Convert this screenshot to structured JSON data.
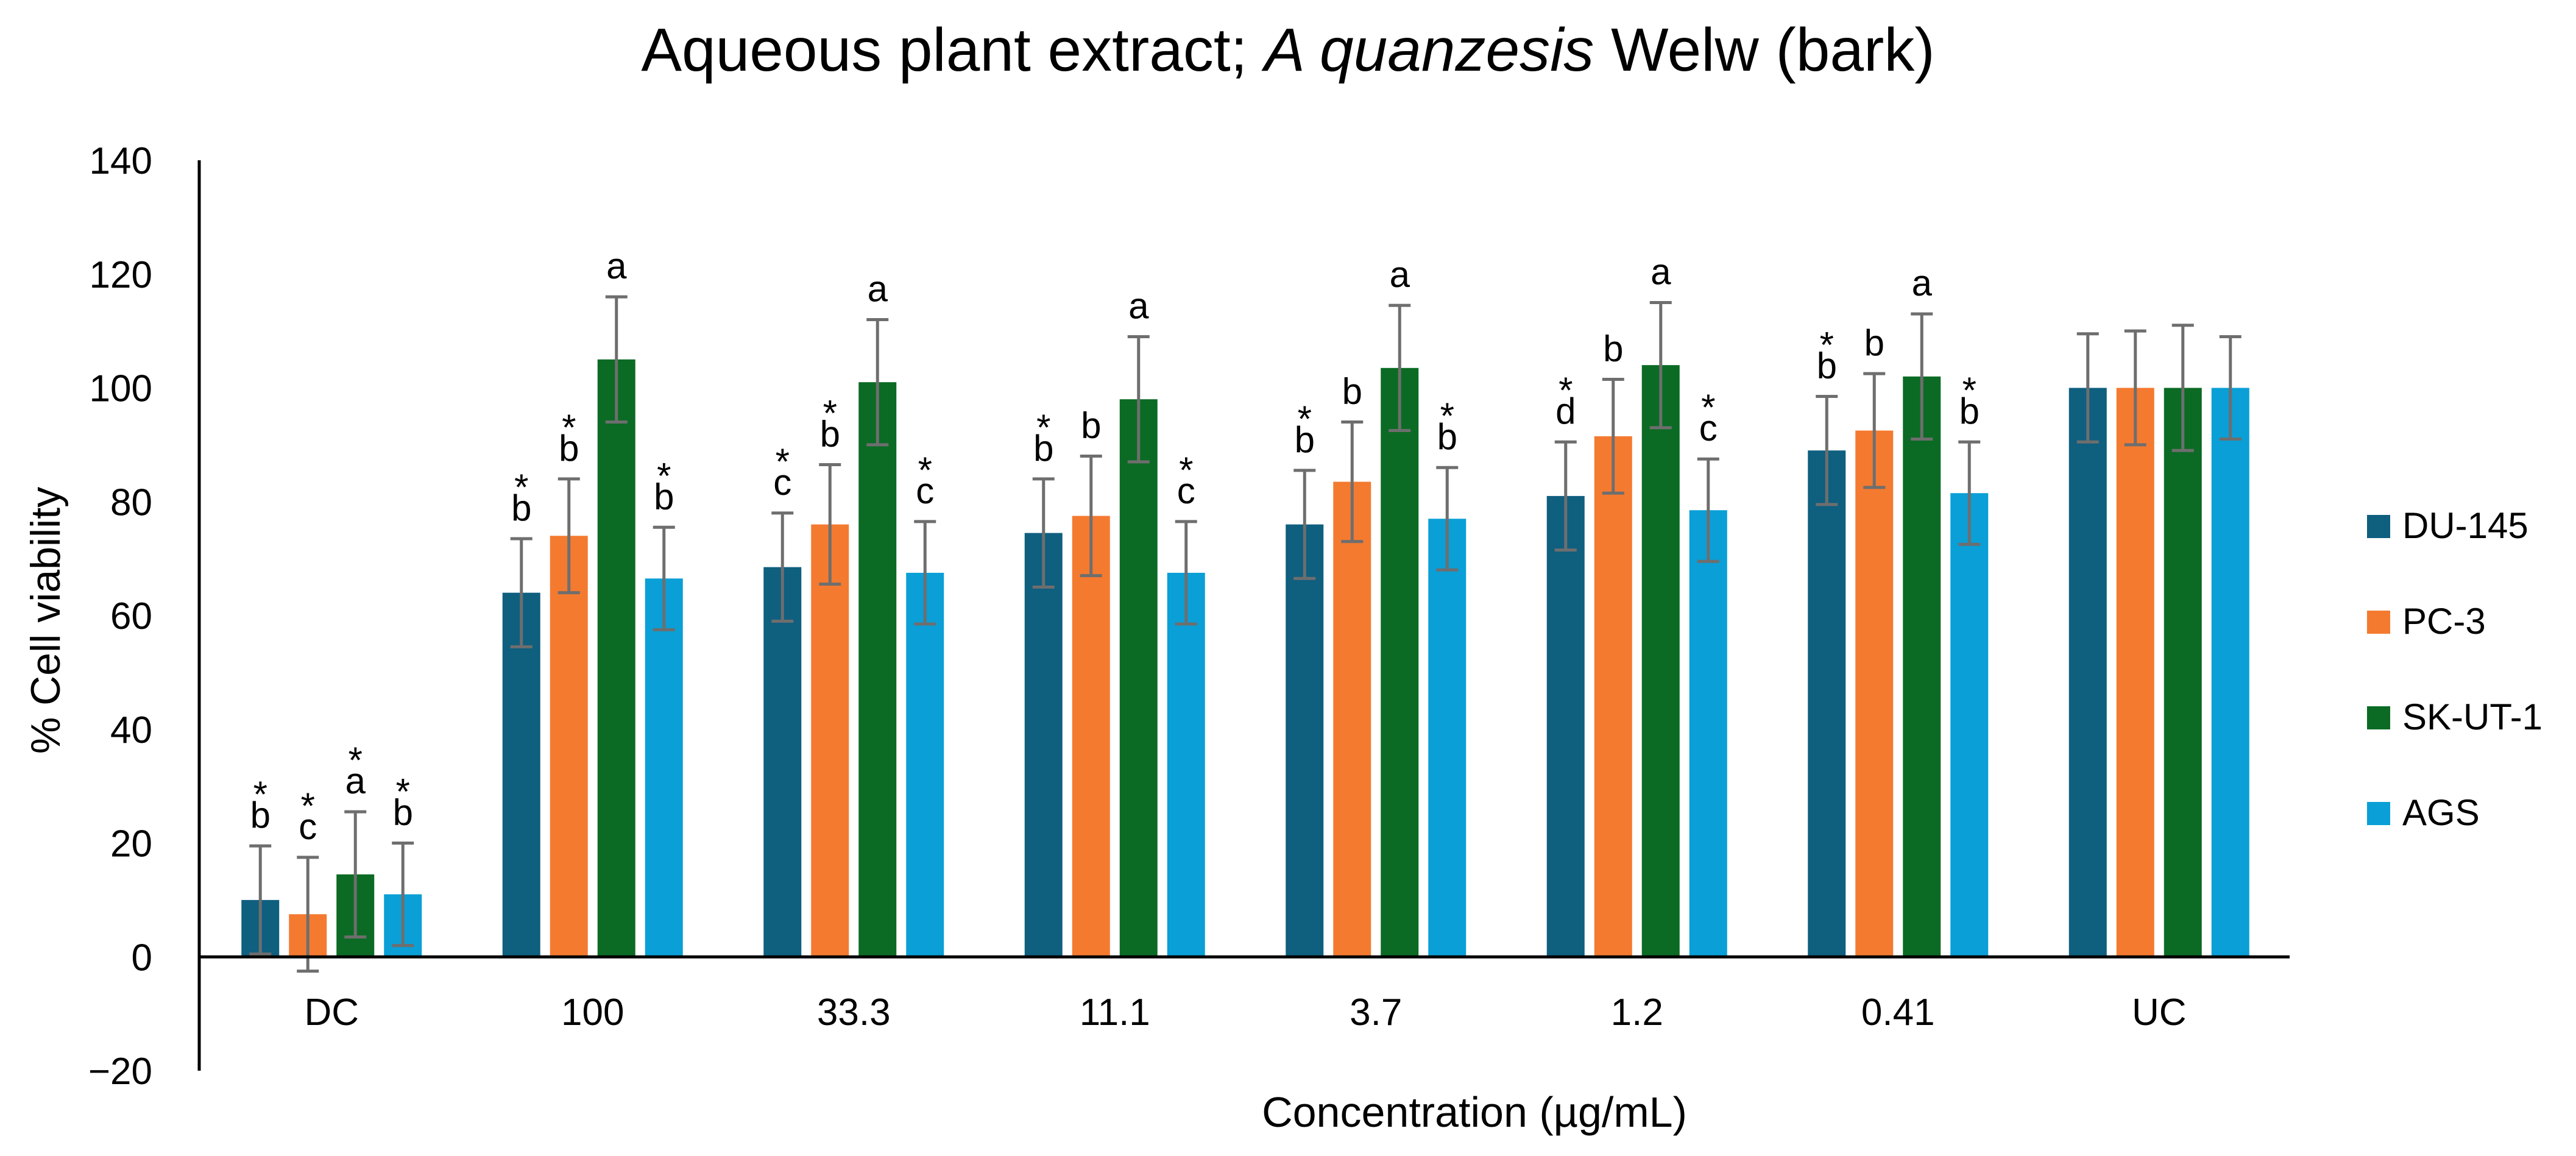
{
  "title": {
    "prefix": "Aqueous plant extract; ",
    "species": "A quanzesis",
    "suffix": " Welw (bark)"
  },
  "chart_data": {
    "type": "bar",
    "title": "Aqueous plant extract; A quanzesis Welw (bark)",
    "xlabel": "Concentration (µg/mL)",
    "ylabel": "% Cell viability",
    "ylim": [
      -20,
      140
    ],
    "yticks": [
      -20,
      0,
      20,
      40,
      60,
      80,
      100,
      120,
      140
    ],
    "ytick_labels": [
      "−20",
      "0",
      "20",
      "40",
      "60",
      "80",
      "100",
      "120",
      "140"
    ],
    "grid": false,
    "legend_position": "right",
    "categories": [
      "DC",
      "100",
      "33.3",
      "11.1",
      "3.7",
      "1.2",
      "0.41",
      "UC"
    ],
    "series": [
      {
        "name": "DU-145",
        "color": "#0f5f7f",
        "values": [
          10,
          64,
          68.5,
          74.5,
          76,
          81,
          89,
          100
        ],
        "errors": [
          9.5,
          9.5,
          9.5,
          9.5,
          9.5,
          9.5,
          9.5,
          9.5
        ],
        "sig_letters": [
          "b",
          "b",
          "c",
          "b",
          "b",
          "d",
          "b",
          ""
        ],
        "asterisks": [
          true,
          true,
          true,
          true,
          true,
          true,
          true,
          false
        ]
      },
      {
        "name": "PC-3",
        "color": "#f47a30",
        "values": [
          7.5,
          74,
          76,
          77.5,
          83.5,
          91.5,
          92.5,
          100
        ],
        "errors": [
          10,
          10,
          10.5,
          10.5,
          10.5,
          10,
          10,
          10
        ],
        "sig_letters": [
          "c",
          "b",
          "b",
          "b",
          "b",
          "b",
          "b",
          ""
        ],
        "asterisks": [
          true,
          true,
          true,
          false,
          false,
          false,
          false,
          false
        ]
      },
      {
        "name": "SK-UT-1",
        "color": "#0b6b24",
        "values": [
          14.5,
          105,
          101,
          98,
          103.5,
          104,
          102,
          100
        ],
        "errors": [
          11,
          11,
          11,
          11,
          11,
          11,
          11,
          11
        ],
        "sig_letters": [
          "a",
          "a",
          "a",
          "a",
          "a",
          "a",
          "a",
          ""
        ],
        "asterisks": [
          true,
          false,
          false,
          false,
          false,
          false,
          false,
          false
        ]
      },
      {
        "name": "AGS",
        "color": "#0a9fd6",
        "values": [
          11,
          66.5,
          67.5,
          67.5,
          77,
          78.5,
          81.5,
          100
        ],
        "errors": [
          9,
          9,
          9,
          9,
          9,
          9,
          9,
          9
        ],
        "sig_letters": [
          "b",
          "b",
          "c",
          "c",
          "b",
          "c",
          "b",
          ""
        ],
        "asterisks": [
          true,
          true,
          true,
          true,
          true,
          true,
          true,
          false
        ]
      }
    ]
  }
}
